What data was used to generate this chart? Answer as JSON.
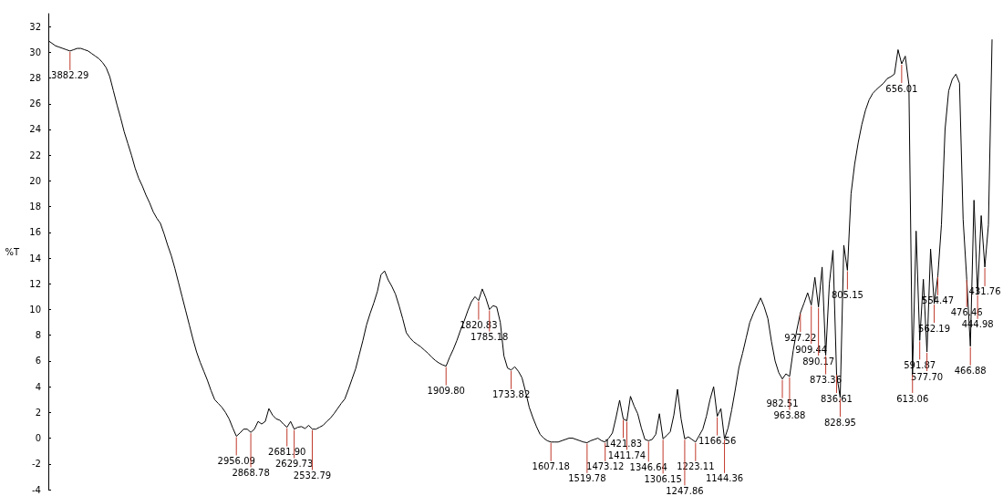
{
  "chart_data": {
    "type": "line",
    "ylabel": "%T",
    "ylim": [
      -4,
      33
    ],
    "yticks": [
      -4,
      -2,
      0,
      2,
      4,
      6,
      8,
      10,
      12,
      14,
      16,
      18,
      20,
      22,
      24,
      26,
      28,
      30,
      32
    ],
    "tick_labels": "y",
    "grid": false,
    "marker": "none",
    "categories": [
      null,
      null,
      null,
      null,
      null,
      null,
      "3882.29",
      null,
      null,
      null,
      null,
      null,
      null,
      null,
      null,
      null,
      null,
      null,
      null,
      null,
      null,
      null,
      null,
      null,
      null,
      null,
      null,
      null,
      null,
      null,
      null,
      null,
      null,
      null,
      null,
      null,
      null,
      null,
      null,
      null,
      null,
      null,
      null,
      null,
      null,
      null,
      null,
      null,
      null,
      null,
      null,
      null,
      "2956.09",
      null,
      null,
      null,
      "2868.78",
      null,
      null,
      null,
      null,
      null,
      null,
      null,
      null,
      null,
      "2681.90",
      null,
      "2629.73",
      null,
      null,
      null,
      null,
      "2532.79",
      null,
      null,
      null,
      null,
      null,
      null,
      null,
      null,
      null,
      null,
      null,
      null,
      null,
      null,
      null,
      null,
      null,
      null,
      null,
      null,
      null,
      null,
      null,
      null,
      null,
      null,
      null,
      null,
      null,
      null,
      null,
      null,
      null,
      null,
      null,
      null,
      "1909.80",
      null,
      null,
      null,
      null,
      null,
      null,
      null,
      null,
      "1820.83",
      null,
      null,
      "1785.18",
      null,
      null,
      null,
      null,
      null,
      "1733.82",
      null,
      null,
      null,
      null,
      null,
      null,
      null,
      null,
      null,
      null,
      "1607.18",
      null,
      null,
      null,
      null,
      null,
      null,
      null,
      null,
      null,
      "1519.78",
      null,
      null,
      null,
      null,
      "1473.12",
      null,
      null,
      null,
      null,
      "1421.83",
      "1411.74",
      null,
      null,
      null,
      null,
      null,
      "1346.64",
      null,
      null,
      null,
      "1306.15",
      null,
      null,
      null,
      null,
      null,
      "1247.86",
      null,
      null,
      "1223.11",
      null,
      null,
      null,
      null,
      null,
      "1166.56",
      null,
      "1144.36",
      null,
      null,
      null,
      null,
      null,
      null,
      null,
      null,
      null,
      null,
      null,
      null,
      null,
      null,
      null,
      "982.51",
      null,
      "963.88",
      null,
      null,
      "927.22",
      null,
      null,
      "909.44",
      null,
      "890.17",
      null,
      "873.36",
      null,
      null,
      "836.61",
      "828.95",
      null,
      "805.15",
      null,
      null,
      null,
      null,
      null,
      null,
      null,
      null,
      null,
      null,
      null,
      null,
      null,
      null,
      "656.01",
      null,
      null,
      "613.06",
      null,
      "591.87",
      null,
      "577.70",
      null,
      "562.19",
      "554.47",
      null,
      null,
      null,
      null,
      null,
      null,
      null,
      "476.46",
      "466.88",
      null,
      "444.98",
      null,
      "431.76",
      null,
      null
    ],
    "series": [
      {
        "color": "#000000",
        "values": [
          30.9,
          30.7,
          30.5,
          30.4,
          30.3,
          30.2,
          30.1,
          30.2,
          30.3,
          30.3,
          30.2,
          30.1,
          29.9,
          29.7,
          29.5,
          29.2,
          28.8,
          28.1,
          27.0,
          25.9,
          24.9,
          23.8,
          22.9,
          22.0,
          21.0,
          20.2,
          19.6,
          18.9,
          18.3,
          17.6,
          17.1,
          16.7,
          15.9,
          15.0,
          14.2,
          13.2,
          12.1,
          11.0,
          9.9,
          8.8,
          7.7,
          6.7,
          5.9,
          5.2,
          4.5,
          3.7,
          3.0,
          2.7,
          2.4,
          2.0,
          1.5,
          0.8,
          0.15,
          0.4,
          0.7,
          0.7,
          0.45,
          0.7,
          1.3,
          1.1,
          1.3,
          2.3,
          1.8,
          1.5,
          1.4,
          1.1,
          0.85,
          1.3,
          0.7,
          0.85,
          0.9,
          0.75,
          1.0,
          0.7,
          0.7,
          0.85,
          1.0,
          1.3,
          1.55,
          1.9,
          2.3,
          2.7,
          3.05,
          3.8,
          4.6,
          5.4,
          6.5,
          7.6,
          8.8,
          9.7,
          10.5,
          11.4,
          12.7,
          13.0,
          12.3,
          11.8,
          11.2,
          10.3,
          9.3,
          8.2,
          7.8,
          7.5,
          7.3,
          7.1,
          6.85,
          6.6,
          6.3,
          6.05,
          5.85,
          5.7,
          5.6,
          6.3,
          6.9,
          7.6,
          8.4,
          9.1,
          9.9,
          10.6,
          11.0,
          10.7,
          11.6,
          10.9,
          10.0,
          10.3,
          10.2,
          9.0,
          6.4,
          5.45,
          5.3,
          5.55,
          5.2,
          4.7,
          3.6,
          2.4,
          1.6,
          0.9,
          0.3,
          0.0,
          -0.2,
          -0.3,
          -0.3,
          -0.3,
          -0.2,
          -0.1,
          0.0,
          0.0,
          -0.1,
          -0.2,
          -0.3,
          -0.35,
          -0.2,
          -0.1,
          0.0,
          -0.2,
          -0.3,
          0.0,
          0.4,
          1.6,
          2.95,
          1.5,
          1.35,
          3.25,
          2.5,
          1.9,
          0.8,
          -0.1,
          -0.2,
          -0.1,
          0.3,
          1.9,
          -0.05,
          0.2,
          0.5,
          1.8,
          3.8,
          1.5,
          -0.05,
          0.1,
          -0.1,
          -0.3,
          0.2,
          0.7,
          1.7,
          3.0,
          4.0,
          1.7,
          2.3,
          -0.05,
          0.8,
          2.2,
          3.8,
          5.5,
          6.6,
          7.8,
          9.0,
          9.7,
          10.3,
          10.9,
          10.2,
          9.3,
          7.5,
          6.0,
          5.1,
          4.6,
          5.0,
          4.8,
          6.8,
          8.4,
          9.75,
          10.5,
          11.3,
          10.35,
          12.5,
          10.2,
          13.3,
          6.45,
          12.0,
          14.6,
          5.0,
          3.15,
          15.0,
          13.05,
          19.0,
          21.3,
          23.0,
          24.4,
          25.5,
          26.3,
          26.8,
          27.1,
          27.35,
          27.6,
          27.95,
          28.1,
          28.3,
          30.2,
          29.1,
          29.7,
          27.5,
          5.0,
          16.1,
          7.6,
          12.35,
          6.7,
          14.7,
          10.45,
          12.6,
          16.6,
          24.0,
          27.0,
          27.9,
          28.3,
          27.6,
          17.0,
          12.35,
          7.15,
          18.5,
          11.2,
          17.3,
          13.3,
          16.6,
          31.0
        ]
      }
    ]
  }
}
